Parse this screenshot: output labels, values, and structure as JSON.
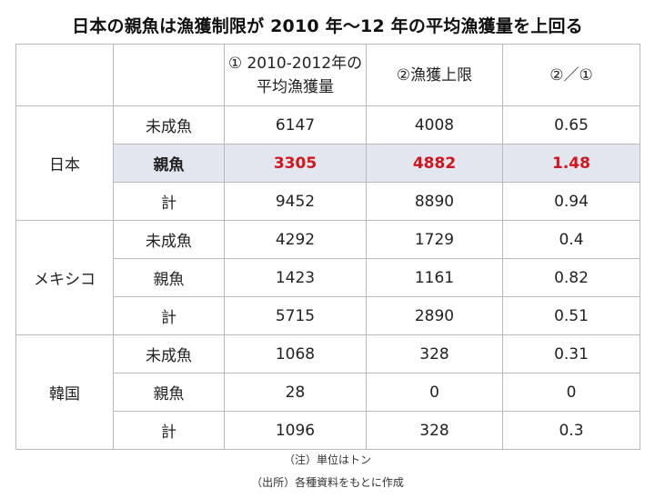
{
  "title": "日本の親魚は漁獲制限が 2010 年〜12 年の平均漁獲量を上回る",
  "header": {
    "col1_line1": "①  2010-2012年の",
    "col1_line2": "平均漁獲量",
    "col2": "②漁獲上限",
    "col3": "②／①"
  },
  "groups": [
    {
      "country": "日本",
      "rows": [
        {
          "label": "未成魚",
          "avg": "6147",
          "limit": "4008",
          "ratio": "0.65"
        },
        {
          "label": "親魚",
          "avg": "3305",
          "limit": "4882",
          "ratio": "1.48"
        },
        {
          "label": "計",
          "avg": "9452",
          "limit": "8890",
          "ratio": "0.94"
        }
      ]
    },
    {
      "country": "メキシコ",
      "rows": [
        {
          "label": "未成魚",
          "avg": "4292",
          "limit": "1729",
          "ratio": "0.4"
        },
        {
          "label": "親魚",
          "avg": "1423",
          "limit": "1161",
          "ratio": "0.82"
        },
        {
          "label": "計",
          "avg": "5715",
          "limit": "2890",
          "ratio": "0.51"
        }
      ]
    },
    {
      "country": "韓国",
      "rows": [
        {
          "label": "未成魚",
          "avg": "1068",
          "limit": "328",
          "ratio": "0.31"
        },
        {
          "label": "親魚",
          "avg": "28",
          "limit": "0",
          "ratio": "0"
        },
        {
          "label": "計",
          "avg": "1096",
          "limit": "328",
          "ratio": "0.3"
        }
      ]
    }
  ],
  "notes": {
    "unit": "（注）単位はトン",
    "source": "（出所）各種資料をもとに作成"
  },
  "colors": {
    "highlight_background": "#e2e7ef",
    "highlight_text": "#d4141c",
    "border": "#b9b9b9"
  }
}
